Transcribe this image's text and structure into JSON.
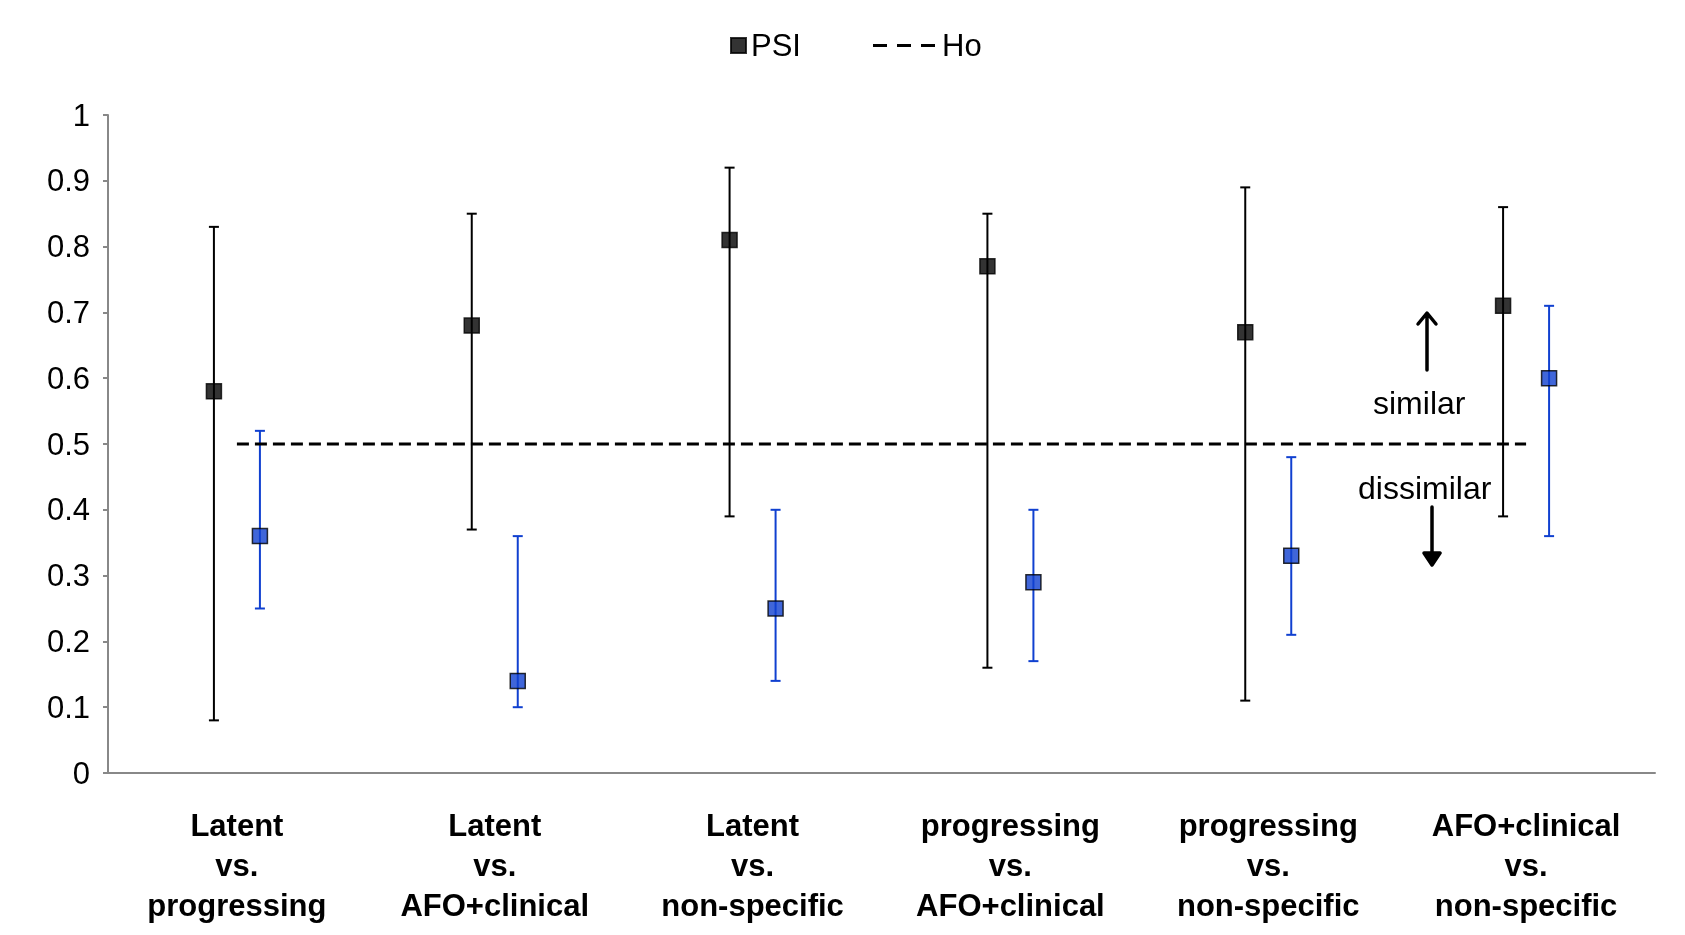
{
  "chart_data": {
    "type": "scatter",
    "categories": [
      "Latent vs. progressing",
      "Latent vs. AFO+clinical",
      "Latent vs. non-specific",
      "progressing vs. AFO+clinical",
      "progressing vs. non-specific",
      "AFO+clinical vs. non-specific"
    ],
    "series": [
      {
        "name": "PSI",
        "color": "#000000",
        "values": [
          0.58,
          0.68,
          0.81,
          0.77,
          0.67,
          0.71
        ],
        "errors": [
          [
            0.08,
            0.83
          ],
          [
            0.37,
            0.85
          ],
          [
            0.39,
            0.92
          ],
          [
            0.16,
            0.85
          ],
          [
            0.11,
            0.89
          ],
          [
            0.39,
            0.86
          ]
        ]
      },
      {
        "color": "#1040d0",
        "values": [
          0.36,
          0.14,
          0.25,
          0.29,
          0.33,
          0.6
        ],
        "errors": [
          [
            0.25,
            0.52
          ],
          [
            0.1,
            0.36
          ],
          [
            0.14,
            0.4
          ],
          [
            0.17,
            0.4
          ],
          [
            0.21,
            0.48
          ],
          [
            0.36,
            0.71
          ]
        ]
      }
    ],
    "ylim": [
      0,
      1
    ],
    "yticks": [
      0,
      0.1,
      0.2,
      0.3,
      0.4,
      0.5,
      0.6,
      0.7,
      0.8,
      0.9,
      1
    ],
    "ref_lines": [
      {
        "axis": "y",
        "value": 0.5,
        "label": "Ho",
        "line_style": "dashed",
        "color": "#000000"
      }
    ],
    "annotations": [
      "similar",
      "dissimilar"
    ],
    "marker": "square",
    "grid": false,
    "legend": "top"
  }
}
